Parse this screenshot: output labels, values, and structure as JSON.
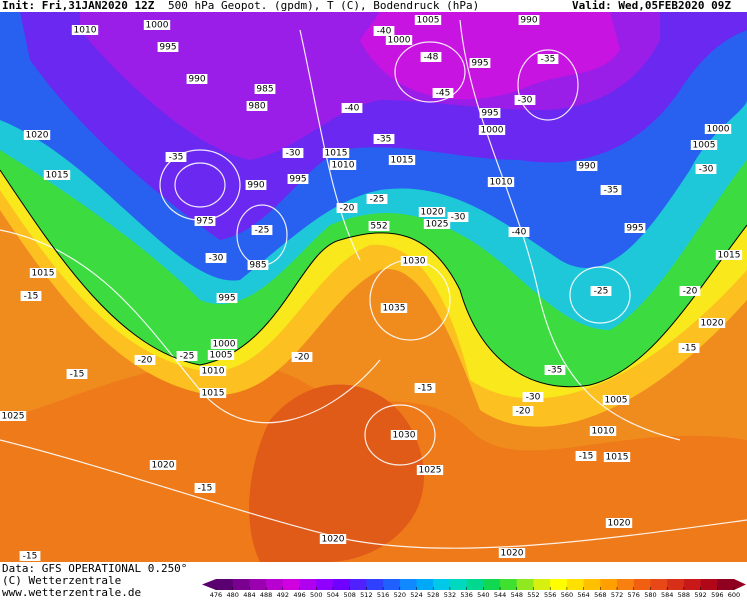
{
  "header": {
    "init": "Init: Fri,31JAN2020 12Z",
    "title": "500 hPa Geopot. (gpdm), T (C), Bodendruck (hPa)",
    "valid": "Valid: Wed,05FEB2020 09Z"
  },
  "map_labels": [
    "1010",
    "1000",
    "995",
    "990",
    "985",
    "980",
    "1020",
    "1015",
    "-35",
    "-30",
    "1015",
    "1010",
    "990",
    "995",
    "975",
    "-25",
    "-30",
    "985",
    "995",
    "1015",
    "-15",
    "552",
    "1030",
    "1020",
    "1025",
    "-30",
    "-25",
    "-20",
    "1035",
    "1005",
    "990",
    "1000",
    "-48",
    "-45",
    "995",
    "-40",
    "-40",
    "-35",
    "1015",
    "995",
    "1000",
    "1010",
    "-40",
    "-35",
    "-30",
    "990",
    "-35",
    "995",
    "-25",
    "1000",
    "1005",
    "-30",
    "1015",
    "-20",
    "1020",
    "-15",
    "1000",
    "1005",
    "1010",
    "-25",
    "-20",
    "-15",
    "-20",
    "1015",
    "1025",
    "-15",
    "-30",
    "-35",
    "-20",
    "1005",
    "1010",
    "-15",
    "1015",
    "1030",
    "1020",
    "-15",
    "1025",
    "1020",
    "1020",
    "1020",
    "-15"
  ],
  "colorbar": {
    "ticks": [
      476,
      480,
      484,
      488,
      492,
      496,
      500,
      504,
      508,
      512,
      516,
      520,
      524,
      528,
      532,
      536,
      540,
      544,
      548,
      552,
      556,
      560,
      564,
      568,
      572,
      576,
      580,
      584,
      588,
      592,
      596,
      600
    ],
    "colors": [
      "#5a0070",
      "#7a0090",
      "#9a00b0",
      "#b800d0",
      "#d000e0",
      "#b000f0",
      "#9000ff",
      "#7000ff",
      "#5020ff",
      "#3040ff",
      "#2060ff",
      "#1088ff",
      "#00a8f8",
      "#00c8e8",
      "#00d8c0",
      "#00d890",
      "#10d850",
      "#40e030",
      "#90e820",
      "#d8f010",
      "#ffff00",
      "#ffe000",
      "#ffc000",
      "#ffa000",
      "#f88010",
      "#f06010",
      "#e84818",
      "#d83018",
      "#c81818",
      "#b00818",
      "#900020"
    ]
  },
  "footer": {
    "data": "Data: GFS OPERATIONAL 0.250°",
    "copyright": "(C) Wetterzentrale",
    "url": "www.wetterzentrale.de"
  }
}
